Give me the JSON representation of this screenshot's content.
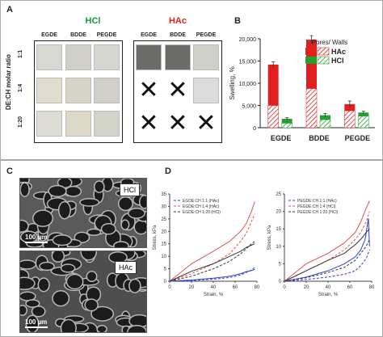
{
  "panels": {
    "a": {
      "label": "A",
      "hcl_header": "HCl",
      "hac_header": "HAc",
      "hcl_columns": [
        "EGDE",
        "BDDE",
        "PEGDE"
      ],
      "hac_columns": [
        "EGDE",
        "BDDE",
        "PEGDE"
      ],
      "row_axis_label": "DE:CH molar ratio",
      "rows": [
        "1:1",
        "1:4",
        "1:20"
      ],
      "colors": {
        "hcl": "#1a9a3a",
        "hac": "#e02020"
      }
    },
    "b": {
      "label": "B"
    },
    "c": {
      "label": "C",
      "top_tag": "HCl",
      "bottom_tag": "HAc",
      "scale_top": "100 µm",
      "scale_bottom": "100 µm"
    },
    "d": {
      "label": "D"
    }
  },
  "chart_data": [
    {
      "type": "bar",
      "panel": "B",
      "ylabel": "Swelling, %",
      "ylim": [
        0,
        20000
      ],
      "yticks": [
        "0",
        "5,000",
        "10,000",
        "15,000",
        "20,000"
      ],
      "categories": [
        "EGDE",
        "BDDE",
        "PEGDE"
      ],
      "legend_title": "Pores/ Walls",
      "legend_placement": "top-right",
      "series": [
        {
          "name": "HAc",
          "color": "#e02020",
          "pores": [
            9200,
            11000,
            1500
          ],
          "walls": [
            5000,
            8800,
            3800
          ],
          "err": [
            600,
            900,
            700
          ]
        },
        {
          "name": "HCl",
          "color": "#22a030",
          "pores": [
            1000,
            1000,
            800
          ],
          "walls": [
            1000,
            1800,
            2600
          ],
          "err": [
            250,
            400,
            300
          ]
        }
      ]
    },
    {
      "type": "line",
      "panel": "D-left",
      "xlabel": "Strain, %",
      "ylabel": "Stress, kPa",
      "xlim": [
        0,
        80
      ],
      "ylim": [
        0,
        35
      ],
      "xticks": [
        0,
        20,
        40,
        60,
        80
      ],
      "yticks": [
        0,
        5,
        10,
        15,
        20,
        25,
        30,
        35
      ],
      "series": [
        {
          "name": "EGDE:CH 1:1 (HAc)",
          "color": "#2b3fd0",
          "dash": true,
          "x": [
            0,
            20,
            40,
            55,
            65,
            70,
            75,
            78
          ],
          "y": [
            0,
            0.3,
            0.8,
            1.5,
            2.5,
            3.5,
            4.5,
            5.5
          ]
        },
        {
          "name": "EGDE:CH 1:4 (HAc)",
          "color": "#e05050",
          "dash": true,
          "x": [
            0,
            20,
            40,
            55,
            65,
            70,
            75,
            78
          ],
          "y": [
            0,
            3,
            7,
            11,
            16,
            19,
            24,
            27
          ]
        },
        {
          "name": "EGDE:CH 1:20 (HCl)",
          "color": "#333333",
          "dash": true,
          "x": [
            0,
            20,
            40,
            55,
            65,
            70,
            75,
            78
          ],
          "y": [
            0,
            2,
            5,
            8,
            11,
            13,
            15,
            16
          ]
        },
        {
          "name": "",
          "color": "#2b3fd0",
          "dash": false,
          "x": [
            0,
            20,
            40,
            55,
            65,
            70,
            75,
            78
          ],
          "y": [
            0,
            0.5,
            1.2,
            2,
            3,
            3.8,
            4.3,
            4.8
          ]
        },
        {
          "name": "",
          "color": "#e05050",
          "dash": false,
          "x": [
            0,
            20,
            40,
            55,
            65,
            70,
            75,
            78
          ],
          "y": [
            0,
            7,
            12,
            16,
            20,
            23,
            28,
            32
          ]
        },
        {
          "name": "",
          "color": "#333333",
          "dash": false,
          "x": [
            0,
            20,
            40,
            55,
            65,
            70,
            75,
            78
          ],
          "y": [
            0,
            4,
            7,
            10,
            12,
            13.5,
            14.5,
            15
          ]
        }
      ]
    },
    {
      "type": "line",
      "panel": "D-right",
      "xlabel": "Strain, %",
      "ylabel": "Stress, kPa",
      "xlim": [
        0,
        80
      ],
      "ylim": [
        0,
        25
      ],
      "xticks": [
        0,
        20,
        40,
        60,
        80
      ],
      "yticks": [
        0,
        5,
        10,
        15,
        20,
        25
      ],
      "series": [
        {
          "name": "PEGDE:CH 1:1 (HAc)",
          "color": "#2b3fd0",
          "dash": true,
          "x": [
            0,
            20,
            40,
            55,
            65,
            70,
            75,
            78
          ],
          "y": [
            0,
            0.5,
            1.2,
            2,
            3,
            4.5,
            6.5,
            9
          ]
        },
        {
          "name": "PEGDE:CH 1:4 (HCl)",
          "color": "#e05050",
          "dash": true,
          "x": [
            0,
            20,
            40,
            55,
            65,
            70,
            75,
            78
          ],
          "y": [
            0,
            3,
            6,
            9,
            12,
            14,
            17,
            20
          ]
        },
        {
          "name": "PEGDE:CH 1:20 (HCl)",
          "color": "#333333",
          "dash": true,
          "x": [
            0,
            20,
            40,
            55,
            65,
            70,
            75,
            78
          ],
          "y": [
            0,
            1,
            2.5,
            4,
            6,
            8,
            10,
            12
          ]
        },
        {
          "name": "",
          "color": "#2b3fd0",
          "dash": false,
          "x": [
            0,
            20,
            40,
            55,
            65,
            70,
            74,
            77,
            78
          ],
          "y": [
            0,
            1.2,
            3,
            5,
            7,
            9,
            12,
            18,
            10
          ]
        },
        {
          "name": "",
          "color": "#e05050",
          "dash": false,
          "x": [
            0,
            20,
            40,
            55,
            65,
            70,
            75,
            78
          ],
          "y": [
            0,
            5,
            8,
            11,
            14,
            17,
            21,
            23
          ]
        },
        {
          "name": "",
          "color": "#333333",
          "dash": false,
          "x": [
            0,
            20,
            40,
            55,
            65,
            70,
            75,
            78
          ],
          "y": [
            0,
            3,
            6,
            8,
            10.5,
            12,
            14,
            15
          ]
        }
      ]
    }
  ]
}
